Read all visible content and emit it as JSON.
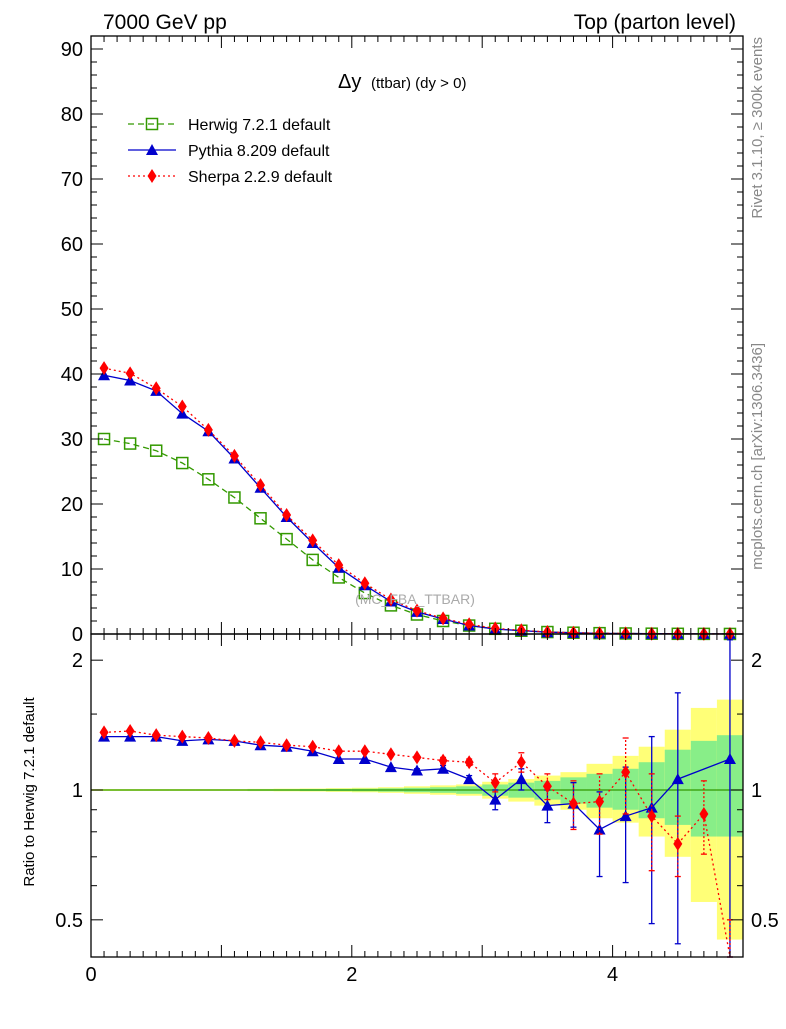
{
  "header": {
    "left": "7000 GeV pp",
    "right": "Top (parton level)"
  },
  "side_labels": {
    "rivet": "Rivet 3.1.10, ≥ 300k events",
    "mcplots": "mcplots.cern.ch [arXiv:1306.3436]"
  },
  "chart_data": [
    {
      "type": "line",
      "title_main": "Δy",
      "title_sub": "(ttbar) (dy > 0)",
      "watermark": "(MC_FBA_TTBAR)",
      "xlim": [
        0,
        5
      ],
      "ylim": [
        0,
        92
      ],
      "y_ticks": [
        "0",
        "10",
        "20",
        "30",
        "40",
        "50",
        "60",
        "70",
        "80",
        "90"
      ],
      "x": [
        0.1,
        0.3,
        0.5,
        0.7,
        0.9,
        1.1,
        1.3,
        1.5,
        1.7,
        1.9,
        2.1,
        2.3,
        2.5,
        2.7,
        2.9,
        3.1,
        3.3,
        3.5,
        3.7,
        3.9,
        4.1,
        4.3,
        4.5,
        4.7,
        4.9
      ],
      "series": [
        {
          "name": "Herwig 7.2.1 default",
          "color": "#339900",
          "marker": "open-square",
          "dash": "dashed",
          "values": [
            30.0,
            29.3,
            28.2,
            26.3,
            23.8,
            21.0,
            17.8,
            14.6,
            11.4,
            8.7,
            6.3,
            4.4,
            3.0,
            2.0,
            1.3,
            0.8,
            0.5,
            0.3,
            0.2,
            0.13,
            0.08,
            0.05,
            0.03,
            0.02,
            0.01
          ]
        },
        {
          "name": "Pythia 8.209 default",
          "color": "#0000cc",
          "marker": "triangle",
          "dash": "solid",
          "values": [
            39.8,
            39.0,
            37.4,
            33.9,
            31.2,
            27.0,
            22.5,
            18.0,
            14.0,
            10.2,
            7.5,
            5.0,
            3.4,
            2.3,
            1.3,
            0.75,
            0.52,
            0.27,
            0.18,
            0.1,
            0.07,
            0.045,
            0.03,
            0.02,
            0.012
          ]
        },
        {
          "name": "Sherpa 2.2.9 default",
          "color": "#ff0000",
          "marker": "diamond",
          "dash": "dotted",
          "values": [
            40.9,
            40.1,
            37.8,
            35.0,
            31.4,
            27.4,
            22.9,
            18.3,
            14.4,
            10.6,
            7.8,
            5.3,
            3.6,
            2.4,
            1.5,
            0.86,
            0.58,
            0.31,
            0.19,
            0.12,
            0.09,
            0.044,
            0.023,
            0.018,
            0.003
          ]
        }
      ]
    },
    {
      "type": "line",
      "ylabel": "Ratio to Herwig 7.2.1 default",
      "xlim": [
        0,
        5
      ],
      "ylim": [
        0.41,
        2.3
      ],
      "y_scale": "log",
      "y_ticks": [
        {
          "v": 0.5,
          "label": "0.5"
        },
        {
          "v": 1,
          "label": "1"
        },
        {
          "v": 2,
          "label": "2"
        }
      ],
      "x_ticks": [
        {
          "v": 0,
          "label": "0"
        },
        {
          "v": 2,
          "label": "2"
        },
        {
          "v": 4,
          "label": "4"
        }
      ],
      "x": [
        0.1,
        0.3,
        0.5,
        0.7,
        0.9,
        1.1,
        1.3,
        1.5,
        1.7,
        1.9,
        2.1,
        2.3,
        2.5,
        2.7,
        2.9,
        3.1,
        3.3,
        3.5,
        3.7,
        3.9,
        4.1,
        4.3,
        4.5,
        4.7,
        4.9
      ],
      "band_yellow_lo": [
        0.995,
        0.995,
        0.995,
        0.995,
        0.995,
        0.995,
        0.994,
        0.993,
        0.992,
        0.99,
        0.988,
        0.985,
        0.98,
        0.975,
        0.97,
        0.955,
        0.94,
        0.92,
        0.9,
        0.86,
        0.84,
        0.78,
        0.7,
        0.55,
        0.45
      ],
      "band_yellow_hi": [
        1.005,
        1.005,
        1.005,
        1.005,
        1.005,
        1.005,
        1.006,
        1.007,
        1.008,
        1.01,
        1.012,
        1.015,
        1.02,
        1.025,
        1.03,
        1.045,
        1.06,
        1.08,
        1.1,
        1.15,
        1.2,
        1.26,
        1.38,
        1.55,
        1.62
      ],
      "band_green_lo": [
        0.997,
        0.997,
        0.997,
        0.997,
        0.997,
        0.997,
        0.996,
        0.996,
        0.995,
        0.994,
        0.993,
        0.991,
        0.988,
        0.985,
        0.98,
        0.97,
        0.96,
        0.95,
        0.93,
        0.91,
        0.9,
        0.86,
        0.83,
        0.78,
        0.78
      ],
      "band_green_hi": [
        1.003,
        1.003,
        1.003,
        1.003,
        1.003,
        1.003,
        1.004,
        1.004,
        1.005,
        1.006,
        1.007,
        1.009,
        1.012,
        1.015,
        1.02,
        1.03,
        1.04,
        1.05,
        1.07,
        1.09,
        1.12,
        1.16,
        1.24,
        1.3,
        1.34
      ],
      "series": [
        {
          "name": "Pythia 8.209 default",
          "color": "#0000cc",
          "marker": "triangle",
          "dash": "solid",
          "values": [
            1.33,
            1.33,
            1.33,
            1.3,
            1.31,
            1.3,
            1.27,
            1.26,
            1.23,
            1.18,
            1.18,
            1.13,
            1.11,
            1.12,
            1.06,
            0.95,
            1.06,
            0.92,
            0.93,
            0.81,
            0.87,
            0.91,
            1.06,
            null,
            1.18
          ],
          "err": [
            0,
            0,
            0,
            0,
            0,
            0,
            0,
            0,
            0,
            0,
            0,
            0,
            0.01,
            0.02,
            0.02,
            0.05,
            0.06,
            0.08,
            0.11,
            0.18,
            0.26,
            0.42,
            0.62,
            null,
            1.05
          ]
        },
        {
          "name": "Sherpa 2.2.9 default",
          "color": "#ff0000",
          "marker": "diamond",
          "dash": "dotted",
          "values": [
            1.36,
            1.37,
            1.34,
            1.33,
            1.32,
            1.3,
            1.29,
            1.27,
            1.26,
            1.23,
            1.23,
            1.21,
            1.19,
            1.17,
            1.16,
            1.04,
            1.16,
            1.02,
            0.93,
            0.94,
            1.1,
            0.87,
            0.75,
            0.88,
            0.3
          ],
          "err": [
            0,
            0,
            0,
            0,
            0,
            0,
            0,
            0,
            0,
            0,
            0,
            0,
            0.01,
            0.02,
            0.02,
            0.05,
            0.06,
            0.07,
            0.12,
            0.15,
            0.22,
            0.22,
            0.12,
            0.17,
            0.2
          ]
        }
      ]
    }
  ]
}
